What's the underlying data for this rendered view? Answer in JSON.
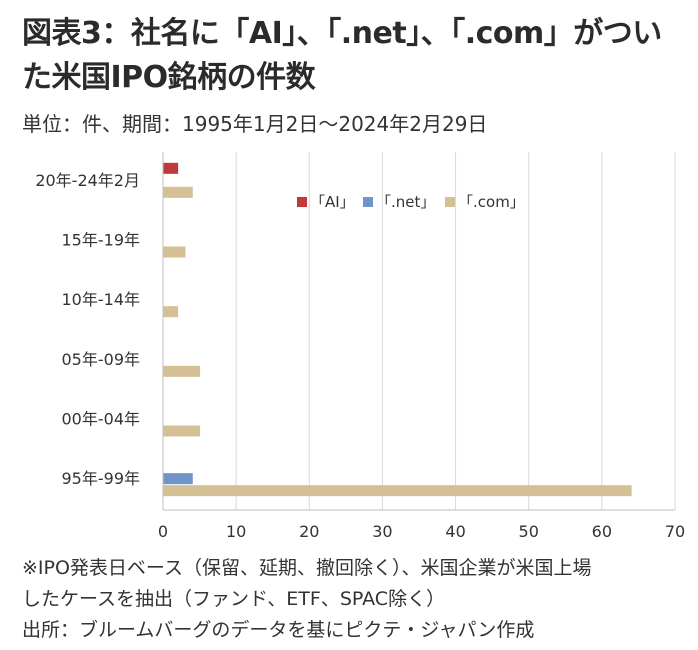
{
  "title": "図表3：社名に「AI」、「.net」、「.com」がついた米国IPO銘柄の件数",
  "subtitle": "単位：件、期間：1995年1月2日～2024年2月29日",
  "notes": [
    "※IPO発表日ベース（保留、延期、撤回除く）、米国企業が米国上場",
    "したケースを抽出（ファンド、ETF、SPAC除く）",
    "出所：ブルームバーグのデータを基にピクテ・ジャパン作成"
  ],
  "chart_data": {
    "type": "bar",
    "orientation": "horizontal",
    "categories": [
      "20年-24年2月",
      "15年-19年",
      "10年-14年",
      "05年-09年",
      "00年-04年",
      "95年-99年"
    ],
    "series": [
      {
        "name": "「AI」",
        "color": "#c0393b",
        "values": [
          2,
          0,
          0,
          0,
          0,
          0
        ]
      },
      {
        "name": "「.net」",
        "color": "#7094c8",
        "values": [
          0,
          0,
          0,
          0,
          0,
          4
        ]
      },
      {
        "name": "「.com」",
        "color": "#d5bf95",
        "values": [
          4,
          3,
          2,
          5,
          5,
          64
        ]
      }
    ],
    "xlim": [
      0,
      70
    ],
    "xticks": [
      0,
      10,
      20,
      30,
      40,
      50,
      60,
      70
    ],
    "grid": true,
    "legend_position": "top-right"
  }
}
